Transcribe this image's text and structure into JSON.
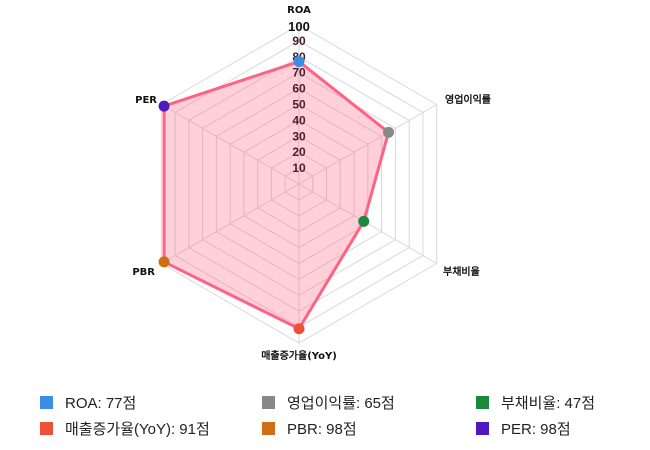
{
  "chart_data": {
    "type": "radar",
    "categories": [
      "ROA",
      "영업이익률",
      "부채비율",
      "매출증가율(YoY)",
      "PBR",
      "PER"
    ],
    "values": [
      77,
      65,
      47,
      91,
      98,
      98
    ],
    "rlim": [
      0,
      100
    ],
    "ticks": [
      "10",
      "20",
      "30",
      "40",
      "50",
      "60",
      "70",
      "80",
      "90",
      "100"
    ],
    "grid": true,
    "line_color": "#ff6384",
    "fill_color": "rgba(255,99,132,0.3)",
    "point_colors": [
      "#3a8ee6",
      "#888888",
      "#1a8a3a",
      "#ee5038",
      "#cc7012",
      "#5019c0"
    ],
    "legend_position": "bottom"
  },
  "legend": [
    {
      "label": "ROA: 77점",
      "color": "#3a8ee6"
    },
    {
      "label": "영업이익률: 65점",
      "color": "#888888"
    },
    {
      "label": "부채비율: 47점",
      "color": "#1a8a3a"
    },
    {
      "label": "매출증가율(YoY): 91점",
      "color": "#ee5038"
    },
    {
      "label": "PBR: 98점",
      "color": "#cc7012"
    },
    {
      "label": "PER: 98점",
      "color": "#5019c0"
    }
  ]
}
